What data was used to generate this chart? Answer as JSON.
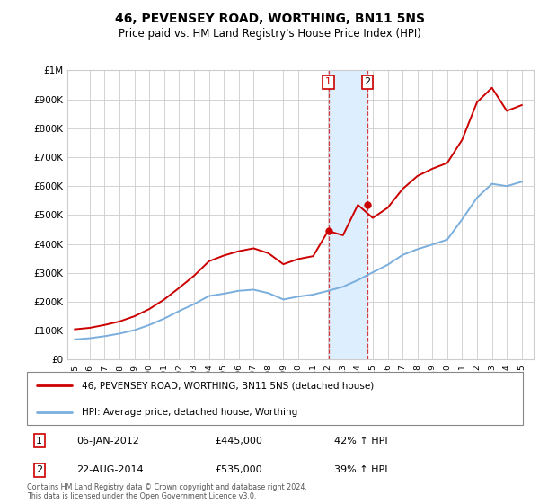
{
  "title": "46, PEVENSEY ROAD, WORTHING, BN11 5NS",
  "subtitle": "Price paid vs. HM Land Registry's House Price Index (HPI)",
  "legend_line1": "46, PEVENSEY ROAD, WORTHING, BN11 5NS (detached house)",
  "legend_line2": "HPI: Average price, detached house, Worthing",
  "transaction1_date": "06-JAN-2012",
  "transaction1_price": 445000,
  "transaction1_label": "42% ↑ HPI",
  "transaction2_date": "22-AUG-2014",
  "transaction2_price": 535000,
  "transaction2_label": "39% ↑ HPI",
  "footnote": "Contains HM Land Registry data © Crown copyright and database right 2024.\nThis data is licensed under the Open Government Licence v3.0.",
  "hpi_color": "#7aaedd",
  "price_color": "#cc0000",
  "highlight_color": "#ddeeff",
  "background_color": "#ffffff",
  "grid_color": "#cccccc",
  "t1_x": 2012.03,
  "t2_x": 2014.65,
  "ylim": [
    0,
    1000000
  ],
  "xlim_left": 1994.5,
  "xlim_right": 2025.8,
  "years": [
    1995,
    1996,
    1997,
    1998,
    1999,
    2000,
    2001,
    2002,
    2003,
    2004,
    2005,
    2006,
    2007,
    2008,
    2009,
    2010,
    2011,
    2012,
    2013,
    2014,
    2015,
    2016,
    2017,
    2018,
    2019,
    2020,
    2021,
    2022,
    2023,
    2024,
    2025
  ],
  "hpi_values": [
    70000,
    74000,
    81000,
    90000,
    102000,
    120000,
    142000,
    168000,
    192000,
    220000,
    228000,
    238000,
    242000,
    230000,
    208000,
    218000,
    225000,
    238000,
    252000,
    275000,
    302000,
    328000,
    362000,
    382000,
    398000,
    415000,
    485000,
    560000,
    608000,
    600000,
    615000
  ],
  "price_values": [
    105000,
    110000,
    120000,
    132000,
    150000,
    175000,
    208000,
    248000,
    290000,
    340000,
    360000,
    375000,
    385000,
    368000,
    330000,
    348000,
    358000,
    445000,
    430000,
    535000,
    490000,
    525000,
    590000,
    635000,
    660000,
    680000,
    760000,
    890000,
    940000,
    860000,
    880000
  ]
}
